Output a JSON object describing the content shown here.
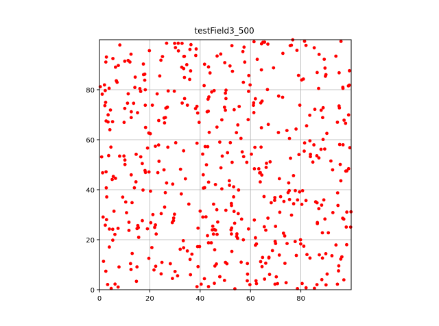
{
  "chart_data": {
    "type": "scatter",
    "title": "testField3_500",
    "xlabel": "",
    "ylabel": "",
    "xlim": [
      0,
      100
    ],
    "ylim": [
      0,
      100
    ],
    "xticks": [
      0,
      20,
      40,
      60,
      80
    ],
    "yticks": [
      0,
      20,
      40,
      60,
      80
    ],
    "grid": true,
    "marker_color": "#ff0000",
    "points_are_approximate": true,
    "seed": 3,
    "n_points": 500
  }
}
